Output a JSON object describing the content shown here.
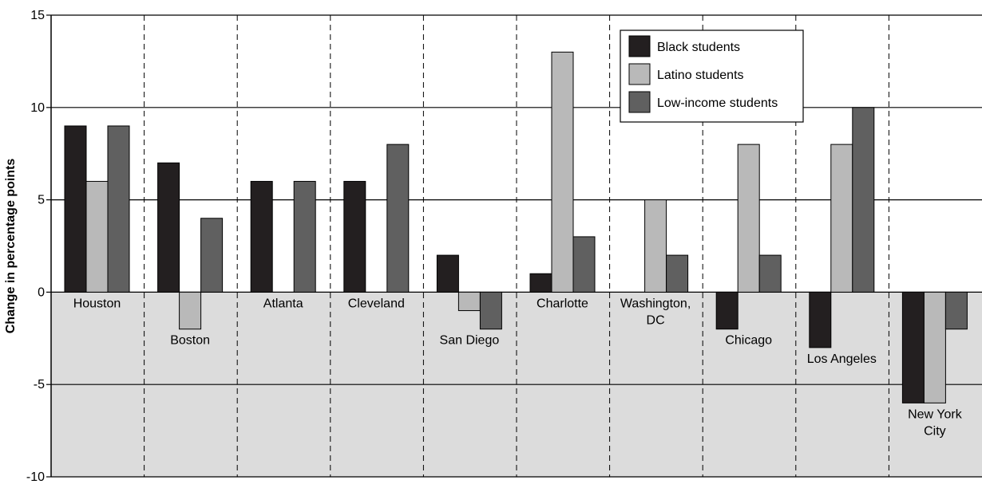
{
  "chart_data": {
    "type": "bar",
    "title": "",
    "xlabel": "",
    "ylabel": "Change in percentage points",
    "ylim": [
      -10,
      15
    ],
    "yticks": [
      15,
      10,
      5,
      0,
      -5,
      -10
    ],
    "negative_region_fill": "#dcdcdc",
    "grid": "horizontal solid at 5-point intervals; dashed vertical separators between cities",
    "legend_position": "top-right",
    "categories": [
      {
        "lines": [
          "Houston"
        ]
      },
      {
        "lines": [
          "Boston"
        ]
      },
      {
        "lines": [
          "Atlanta"
        ]
      },
      {
        "lines": [
          "Cleveland"
        ]
      },
      {
        "lines": [
          "San Diego"
        ]
      },
      {
        "lines": [
          "Charlotte"
        ]
      },
      {
        "lines": [
          "Washington,",
          "DC"
        ]
      },
      {
        "lines": [
          "Chicago"
        ]
      },
      {
        "lines": [
          "Los Angeles"
        ]
      },
      {
        "lines": [
          "New York",
          "City"
        ]
      }
    ],
    "series": [
      {
        "name": "Black students",
        "color": "#231f20",
        "values": [
          9,
          7,
          6,
          6,
          2,
          1,
          0,
          -2,
          -3,
          -6
        ]
      },
      {
        "name": "Latino students",
        "color": "#b9b9b9",
        "values": [
          6,
          -2,
          0,
          0,
          -1,
          13,
          5,
          8,
          8,
          -6
        ]
      },
      {
        "name": "Low-income students",
        "color": "#606060",
        "values": [
          9,
          4,
          6,
          8,
          -2,
          3,
          2,
          2,
          10,
          -2
        ]
      }
    ]
  }
}
